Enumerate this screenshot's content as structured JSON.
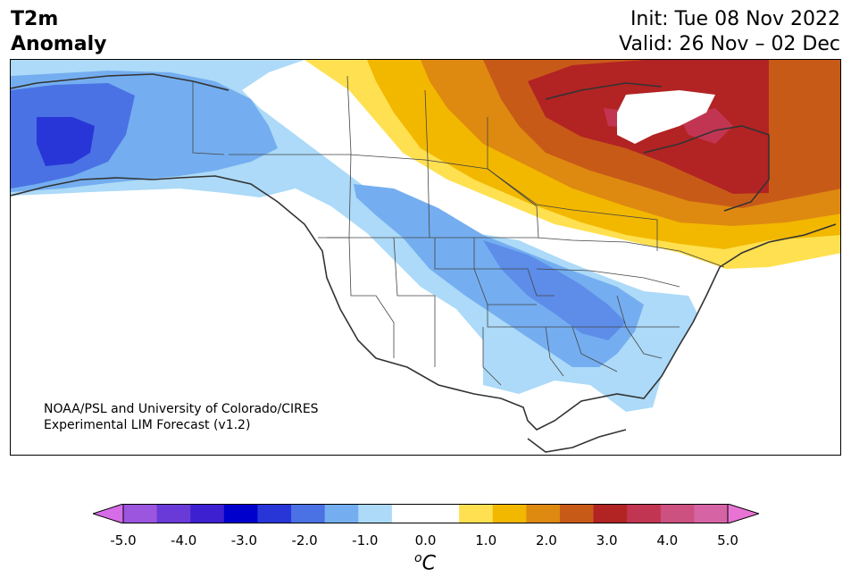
{
  "title": {
    "left_line1": "T2m",
    "left_line2": "Anomaly",
    "right_line1": "Init: Tue 08 Nov 2022",
    "right_line2": "Valid: 26 Nov – 02 Dec"
  },
  "credit": {
    "line1": "NOAA/PSL and University of Colorado/CIRES",
    "line2": "Experimental LIM Forecast (v1.2)"
  },
  "colorbar": {
    "colors": [
      "#d66ce8",
      "#9c55de",
      "#6a3ad8",
      "#3d20d0",
      "#0000cc",
      "#2836d8",
      "#4a72e4",
      "#74aef0",
      "#acdaf8",
      "#ffffff",
      "#ffffff",
      "#ffe050",
      "#f2b800",
      "#de8a10",
      "#c85a18",
      "#b22323",
      "#c23552",
      "#cc5080",
      "#d664a4",
      "#e873d4"
    ],
    "tick_labels": [
      "-5.0",
      "-4.0",
      "-3.0",
      "-2.0",
      "-1.0",
      "0.0",
      "1.0",
      "2.0",
      "3.0",
      "4.0",
      "5.0"
    ],
    "unit_sup": "o",
    "unit": "C"
  },
  "map_colors": {
    "light_blue": "#acdaf8",
    "blue": "#74aef0",
    "mid_blue": "#4a72e4",
    "deep_blue": "#2836d8",
    "yellow": "#ffe050",
    "gold": "#f2b800",
    "orange": "#de8a10",
    "rust": "#c85a18",
    "red": "#b22323",
    "crimson": "#c23552"
  }
}
